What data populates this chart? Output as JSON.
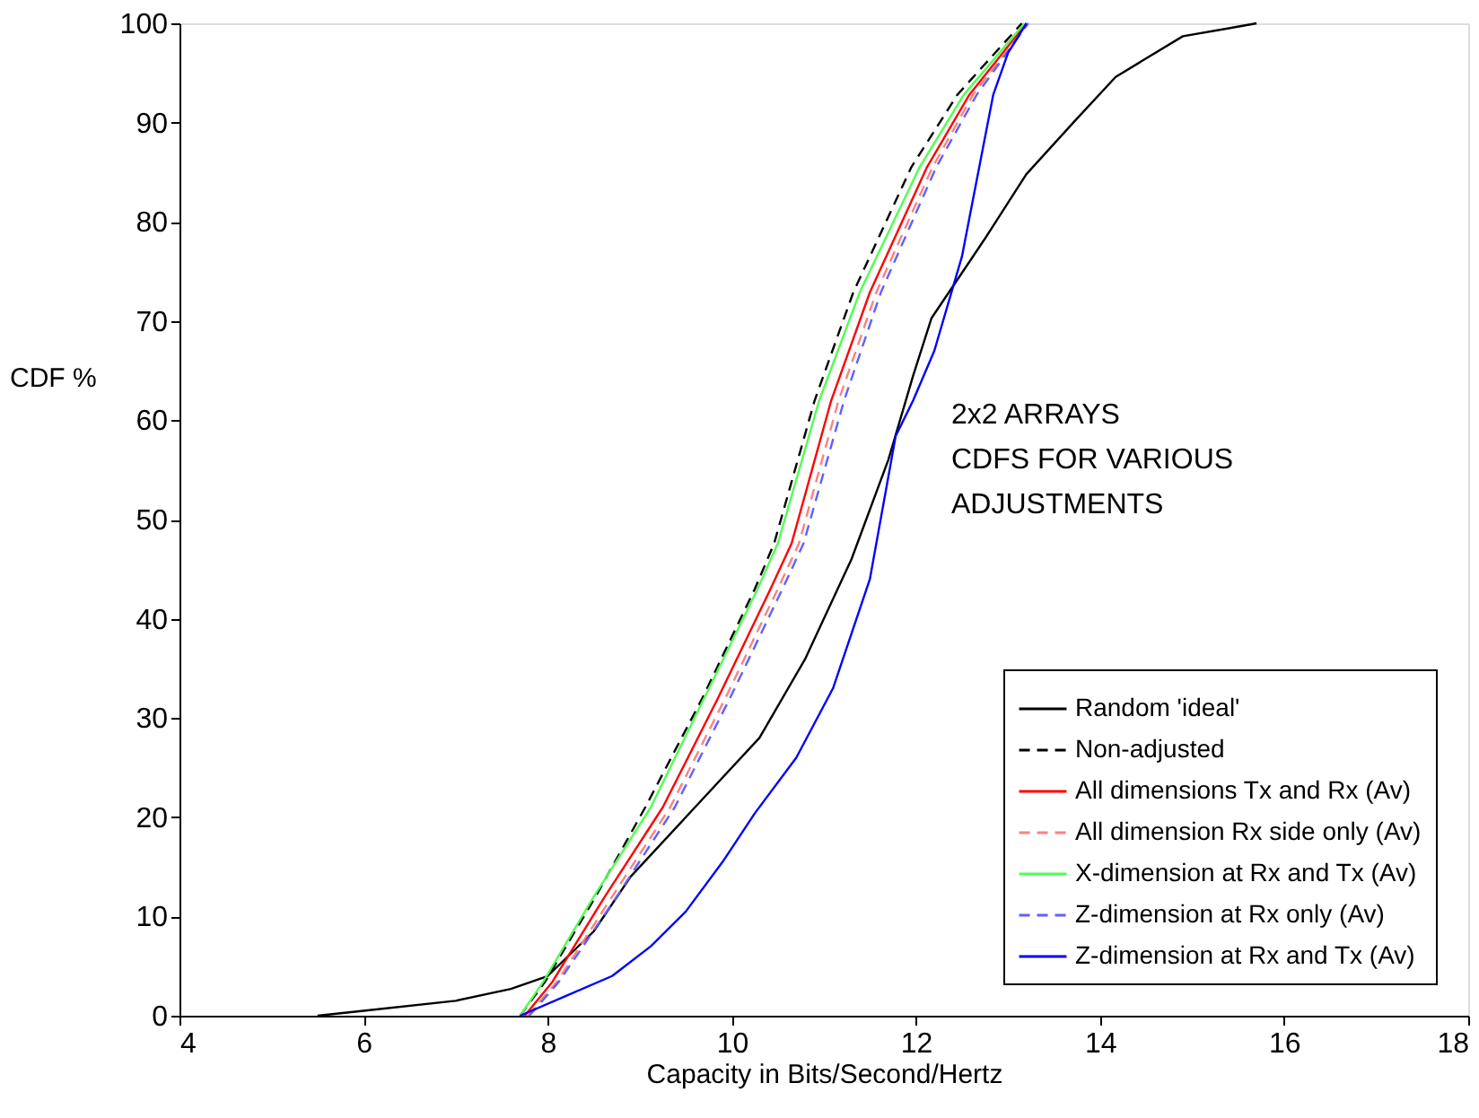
{
  "chart_data": {
    "type": "line",
    "xlabel": "Capacity in Bits/Second/Hertz",
    "ylabel": "CDF %",
    "xlim": [
      4,
      18
    ],
    "xticks": [
      4,
      6,
      8,
      10,
      12,
      14,
      16,
      18
    ],
    "ylim": [
      0,
      100
    ],
    "yticks": [
      0,
      10,
      20,
      30,
      40,
      50,
      60,
      70,
      80,
      90,
      100
    ],
    "grid": false,
    "legend": "bottom right",
    "marker": "none",
    "annotations": [
      "2x2 ARRAYS\nCDFS  FOR VARIOUS\nADJUSTMENTS"
    ],
    "series": [
      {
        "name": "Random 'ideal'",
        "color": "#000000",
        "line_style": "solid",
        "x": [
          5.5,
          6,
          7,
          7.6,
          8,
          8.5,
          8.9,
          9.5,
          10.3,
          10.8,
          11.3,
          11.7,
          11.97,
          12.17,
          12.75,
          13.2,
          13.73,
          14.17,
          14.9,
          15.4,
          15.7
        ],
        "values": [
          0,
          0.5,
          1.5,
          2.7,
          4,
          8.5,
          14,
          20,
          28,
          36,
          46,
          56,
          64.5,
          70.3,
          78.3,
          84.8,
          90.2,
          94.6,
          98.7,
          99.5,
          100
        ]
      },
      {
        "name": "Non-adjusted",
        "color": "#000000",
        "line_style": "dashed",
        "x": [
          7.7,
          7.97,
          8.52,
          9.06,
          9.68,
          10.25,
          10.46,
          10.9,
          11.32,
          11.95,
          12.45,
          13.15
        ],
        "values": [
          0,
          3.4,
          12,
          21,
          32,
          43,
          47.6,
          62,
          72.9,
          85.5,
          92.8,
          100
        ]
      },
      {
        "name": "All dimensions Tx and Rx (Av)",
        "color": "#ff0000",
        "line_style": "solid",
        "x": [
          7.75,
          8.05,
          8.62,
          9.25,
          9.85,
          10.42,
          10.65,
          11.08,
          11.5,
          12.12,
          12.58,
          13.2
        ],
        "values": [
          0,
          3.4,
          12,
          21,
          32,
          43,
          47.6,
          62,
          72.9,
          85.5,
          92.8,
          100
        ]
      },
      {
        "name": "All dimension Rx side only (Av)",
        "color": "#ff8080",
        "line_style": "dashed",
        "x": [
          7.78,
          8.1,
          8.7,
          9.33,
          9.93,
          10.5,
          10.73,
          11.16,
          11.57,
          12.18,
          12.62,
          13.22
        ],
        "values": [
          0,
          3.4,
          12,
          21,
          32,
          43,
          47.6,
          62,
          72.9,
          85.5,
          92.8,
          100
        ]
      },
      {
        "name": "X-dimension at Rx and Tx (Av)",
        "color": "#50ff50",
        "line_style": "solid",
        "x": [
          7.7,
          7.95,
          8.5,
          9.12,
          9.7,
          10.28,
          10.5,
          10.95,
          11.39,
          12.04,
          12.52,
          13.18
        ],
        "values": [
          0,
          3.4,
          12,
          21,
          32,
          43,
          47.6,
          62,
          72.9,
          85.5,
          92.8,
          100
        ]
      },
      {
        "name": "Z-dimension at Rx only (Av)",
        "color": "#6060ff",
        "line_style": "dashed",
        "x": [
          7.8,
          8.12,
          8.75,
          9.38,
          9.98,
          10.55,
          10.78,
          11.22,
          11.62,
          12.22,
          12.66,
          13.22
        ],
        "values": [
          0,
          3.4,
          12,
          21,
          32,
          43,
          47.6,
          62,
          72.9,
          85.5,
          92.8,
          100
        ]
      },
      {
        "name": "Z-dimension at Rx and Tx (Av)",
        "color": "#0000ff",
        "line_style": "solid",
        "x": [
          7.7,
          8.2,
          8.7,
          9.12,
          9.5,
          9.9,
          10.25,
          10.7,
          11.1,
          11.5,
          11.78,
          11.97,
          12.2,
          12.5,
          12.84,
          13.0,
          13.2
        ],
        "values": [
          0,
          2,
          4,
          7,
          10.5,
          15.5,
          20.4,
          26,
          33,
          44,
          58.4,
          62,
          67,
          76.5,
          92.8,
          97,
          100
        ]
      }
    ]
  }
}
